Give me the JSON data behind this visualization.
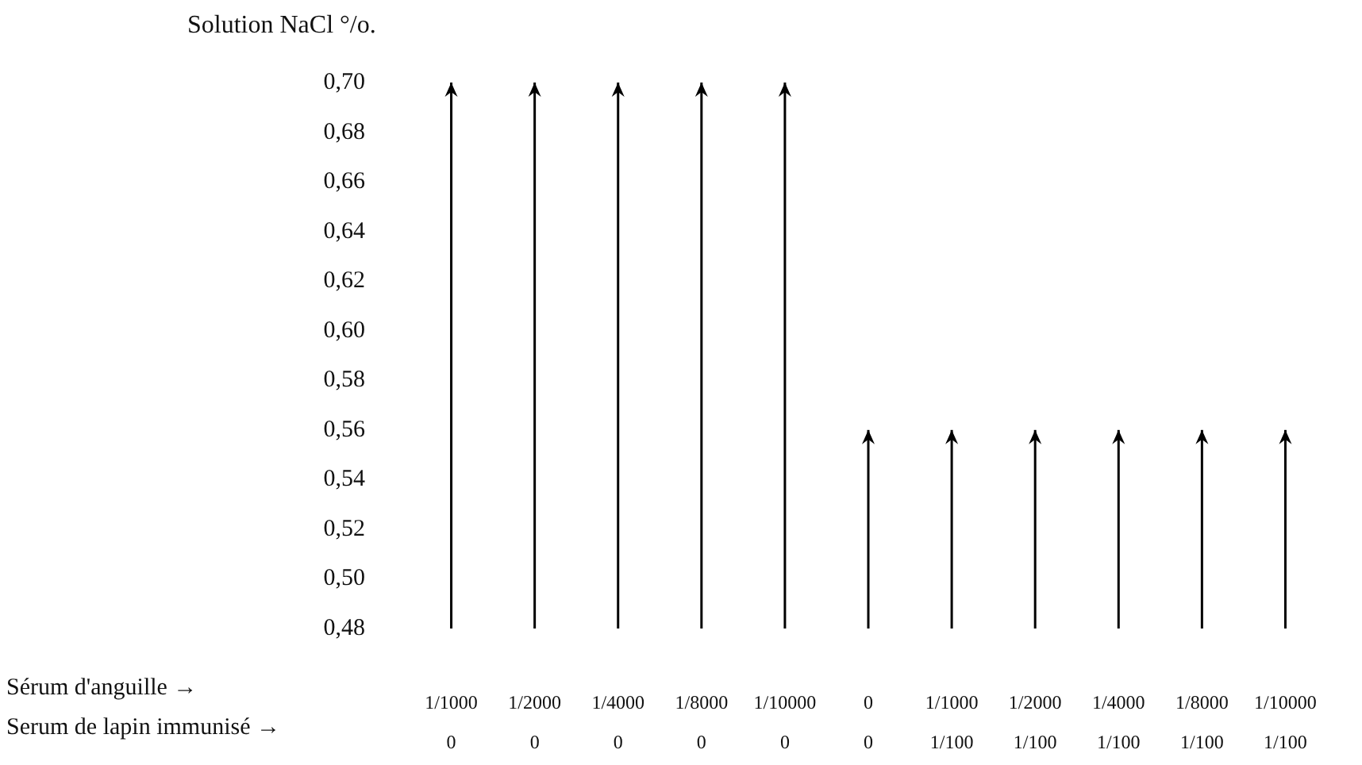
{
  "chart_data": {
    "type": "bar",
    "ylabel": "Solution NaCl °/o.",
    "categories": [
      "1/1000\n0",
      "1/2000\n0",
      "1/4000\n0",
      "1/8000\n0",
      "1/10000\n0",
      "0\n0",
      "1/1000\n1/100",
      "1/2000\n1/100",
      "1/4000\n1/100",
      "1/8000\n1/100",
      "1/10000\n1/100"
    ],
    "values": [
      0.7,
      0.7,
      0.7,
      0.7,
      0.7,
      0.56,
      0.56,
      0.56,
      0.56,
      0.56,
      0.56
    ],
    "color": "#000000",
    "ylim": [
      0.48,
      0.7
    ],
    "yticks": [
      {
        "value": 0.48,
        "label": "0,48"
      },
      {
        "value": 0.5,
        "label": "0,50"
      },
      {
        "value": 0.52,
        "label": "0,52"
      },
      {
        "value": 0.54,
        "label": "0,54"
      },
      {
        "value": 0.56,
        "label": "0,56"
      },
      {
        "value": 0.58,
        "label": "0,58"
      },
      {
        "value": 0.6,
        "label": "0,60"
      },
      {
        "value": 0.62,
        "label": "0,62"
      },
      {
        "value": 0.64,
        "label": "0,64"
      },
      {
        "value": 0.66,
        "label": "0,66"
      },
      {
        "value": 0.68,
        "label": "0,68"
      },
      {
        "value": 0.7,
        "label": "0,70"
      }
    ],
    "annotations": [
      "Sérum d'anguille →",
      "Serum de lapin immunisé →"
    ],
    "grid": false
  }
}
